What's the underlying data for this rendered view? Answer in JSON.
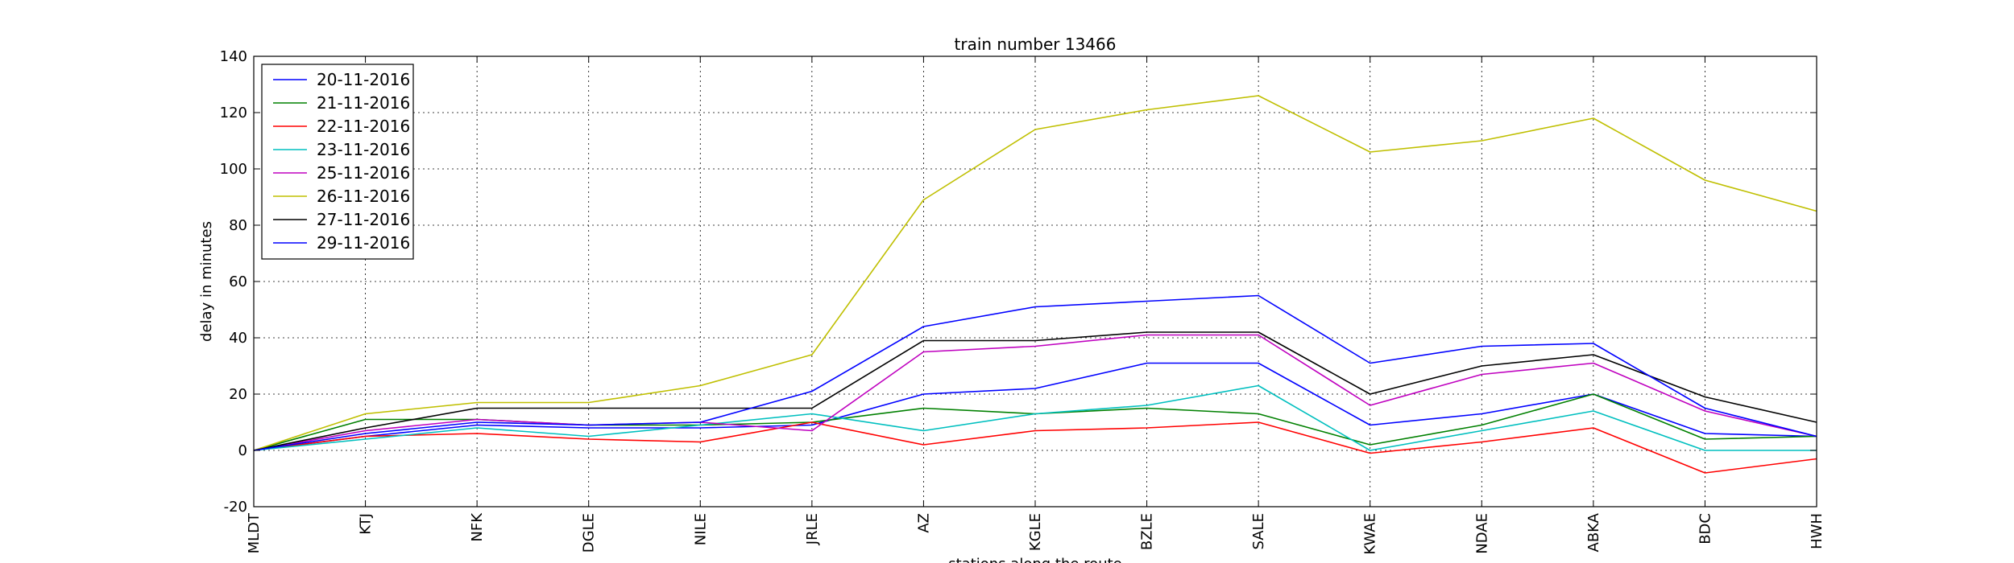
{
  "chart_data": {
    "type": "line",
    "title": "train number 13466",
    "xlabel": "stations along the route",
    "ylabel": "delay in minutes",
    "ylim": [
      -20,
      140
    ],
    "yticks": [
      -20,
      0,
      20,
      40,
      60,
      80,
      100,
      120,
      140
    ],
    "grid": true,
    "legend_position": "top-left",
    "categories": [
      "MLDT",
      "KTJ",
      "NFK",
      "DGLE",
      "NILE",
      "JRLE",
      "AZ",
      "KGLE",
      "BZLE",
      "SALE",
      "KWAE",
      "NDAE",
      "ABKA",
      "BDC",
      "HWH"
    ],
    "series": [
      {
        "name": "20-11-2016",
        "color": "#0000ff",
        "values": [
          0,
          5,
          9,
          8,
          8,
          9,
          20,
          22,
          31,
          31,
          9,
          13,
          20,
          6,
          5
        ]
      },
      {
        "name": "21-11-2016",
        "color": "#008000",
        "values": [
          0,
          11,
          11,
          9,
          9,
          10,
          15,
          13,
          15,
          13,
          2,
          9,
          20,
          4,
          5
        ]
      },
      {
        "name": "22-11-2016",
        "color": "#ff0000",
        "values": [
          0,
          5,
          6,
          4,
          3,
          10,
          2,
          7,
          8,
          10,
          -1,
          3,
          8,
          -8,
          -3
        ]
      },
      {
        "name": "23-11-2016",
        "color": "#00bfbf",
        "values": [
          0,
          4,
          8,
          5,
          9,
          13,
          7,
          13,
          16,
          23,
          0,
          7,
          14,
          0,
          0
        ]
      },
      {
        "name": "25-11-2016",
        "color": "#bf00bf",
        "values": [
          0,
          7,
          11,
          9,
          10,
          7,
          35,
          37,
          41,
          41,
          16,
          27,
          31,
          14,
          5
        ]
      },
      {
        "name": "26-11-2016",
        "color": "#bfbf00",
        "values": [
          0,
          13,
          17,
          17,
          23,
          34,
          89,
          114,
          121,
          126,
          106,
          110,
          118,
          96,
          85
        ]
      },
      {
        "name": "27-11-2016",
        "color": "#000000",
        "values": [
          0,
          8,
          15,
          15,
          15,
          15,
          39,
          39,
          42,
          42,
          20,
          30,
          34,
          19,
          10
        ]
      },
      {
        "name": "29-11-2016",
        "color": "#0000ff",
        "values": [
          0,
          6,
          10,
          9,
          10,
          21,
          44,
          51,
          53,
          55,
          31,
          37,
          38,
          15,
          5
        ]
      }
    ]
  }
}
